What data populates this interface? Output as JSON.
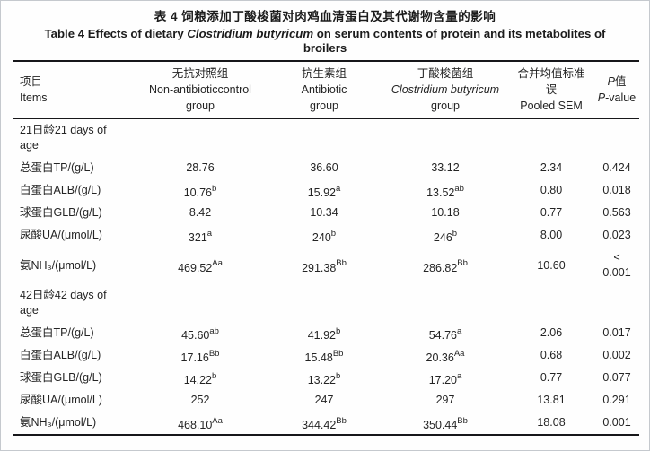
{
  "table": {
    "title_zh": "表 4 饲粮添加丁酸梭菌对肉鸡血清蛋白及其代谢物含量的影响",
    "title_en": {
      "prefix": "Table 4 Effects of dietary ",
      "italic": "Clostridium butyricum",
      "suffix": " on serum contents of protein and its metabolites of broilers"
    },
    "headers": [
      {
        "key": "items",
        "align": "left",
        "lines": [
          "项目",
          "Items"
        ]
      },
      {
        "key": "non-antibiotic-control-group",
        "lines": [
          "无抗对照组",
          "Non-antibioticcontrol",
          "group"
        ]
      },
      {
        "key": "antibiotic-group",
        "lines": [
          "抗生素组",
          "Antibiotic",
          "group"
        ]
      },
      {
        "key": "clostridium-butyricum-group",
        "lines": [
          "丁酸梭菌组",
          "Clostridium butyricum",
          "group"
        ],
        "italic_line": 1
      },
      {
        "key": "pooled-sem",
        "lines": [
          "合并均值标准",
          "误",
          "Pooled SEM"
        ]
      },
      {
        "key": "p-value",
        "lines": [
          "P值",
          "P-value"
        ],
        "italic_prefix": "P"
      }
    ],
    "sections": [
      {
        "label": "21日龄21 days of age",
        "rows": [
          {
            "item": "总蛋白TP/(g/L)",
            "values": [
              {
                "v": "28.76",
                "s": ""
              },
              {
                "v": "36.60",
                "s": ""
              },
              {
                "v": "33.12",
                "s": ""
              }
            ],
            "sem": "2.34",
            "p": "0.424"
          },
          {
            "item": "白蛋白ALB/(g/L)",
            "values": [
              {
                "v": "10.76",
                "s": "b"
              },
              {
                "v": "15.92",
                "s": "a"
              },
              {
                "v": "13.52",
                "s": "ab"
              }
            ],
            "sem": "0.80",
            "p": "0.018"
          },
          {
            "item": "球蛋白GLB/(g/L)",
            "values": [
              {
                "v": "8.42",
                "s": ""
              },
              {
                "v": "10.34",
                "s": ""
              },
              {
                "v": "10.18",
                "s": ""
              }
            ],
            "sem": "0.77",
            "p": "0.563"
          },
          {
            "item": "尿酸UA/(μmol/L)",
            "values": [
              {
                "v": "321",
                "s": "a"
              },
              {
                "v": "240",
                "s": "b"
              },
              {
                "v": "246",
                "s": "b"
              }
            ],
            "sem": "8.00",
            "p": "0.023"
          },
          {
            "item": "氨NH₃/(μmol/L)",
            "values": [
              {
                "v": "469.52",
                "s": "Aa"
              },
              {
                "v": "291.38",
                "s": "Bb"
              },
              {
                "v": "286.82",
                "s": "Bb"
              }
            ],
            "sem": "10.60",
            "p": "< 0.001"
          }
        ]
      },
      {
        "label": "42日龄42 days of age",
        "rows": [
          {
            "item": "总蛋白TP/(g/L)",
            "values": [
              {
                "v": "45.60",
                "s": "ab"
              },
              {
                "v": "41.92",
                "s": "b"
              },
              {
                "v": "54.76",
                "s": "a"
              }
            ],
            "sem": "2.06",
            "p": "0.017"
          },
          {
            "item": "白蛋白ALB/(g/L)",
            "values": [
              {
                "v": "17.16",
                "s": "Bb"
              },
              {
                "v": "15.48",
                "s": "Bb"
              },
              {
                "v": "20.36",
                "s": "Aa"
              }
            ],
            "sem": "0.68",
            "p": "0.002"
          },
          {
            "item": "球蛋白GLB/(g/L)",
            "values": [
              {
                "v": "14.22",
                "s": "b"
              },
              {
                "v": "13.22",
                "s": "b"
              },
              {
                "v": "17.20",
                "s": "a"
              }
            ],
            "sem": "0.77",
            "p": "0.077"
          },
          {
            "item": "尿酸UA/(μmol/L)",
            "values": [
              {
                "v": "252",
                "s": ""
              },
              {
                "v": "247",
                "s": ""
              },
              {
                "v": "297",
                "s": ""
              }
            ],
            "sem": "13.81",
            "p": "0.291"
          },
          {
            "item": "氨NH₃/(μmol/L)",
            "values": [
              {
                "v": "468.10",
                "s": "Aa"
              },
              {
                "v": "344.42",
                "s": "Bb"
              },
              {
                "v": "350.44",
                "s": "Bb"
              }
            ],
            "sem": "18.08",
            "p": "0.001"
          }
        ]
      }
    ]
  }
}
